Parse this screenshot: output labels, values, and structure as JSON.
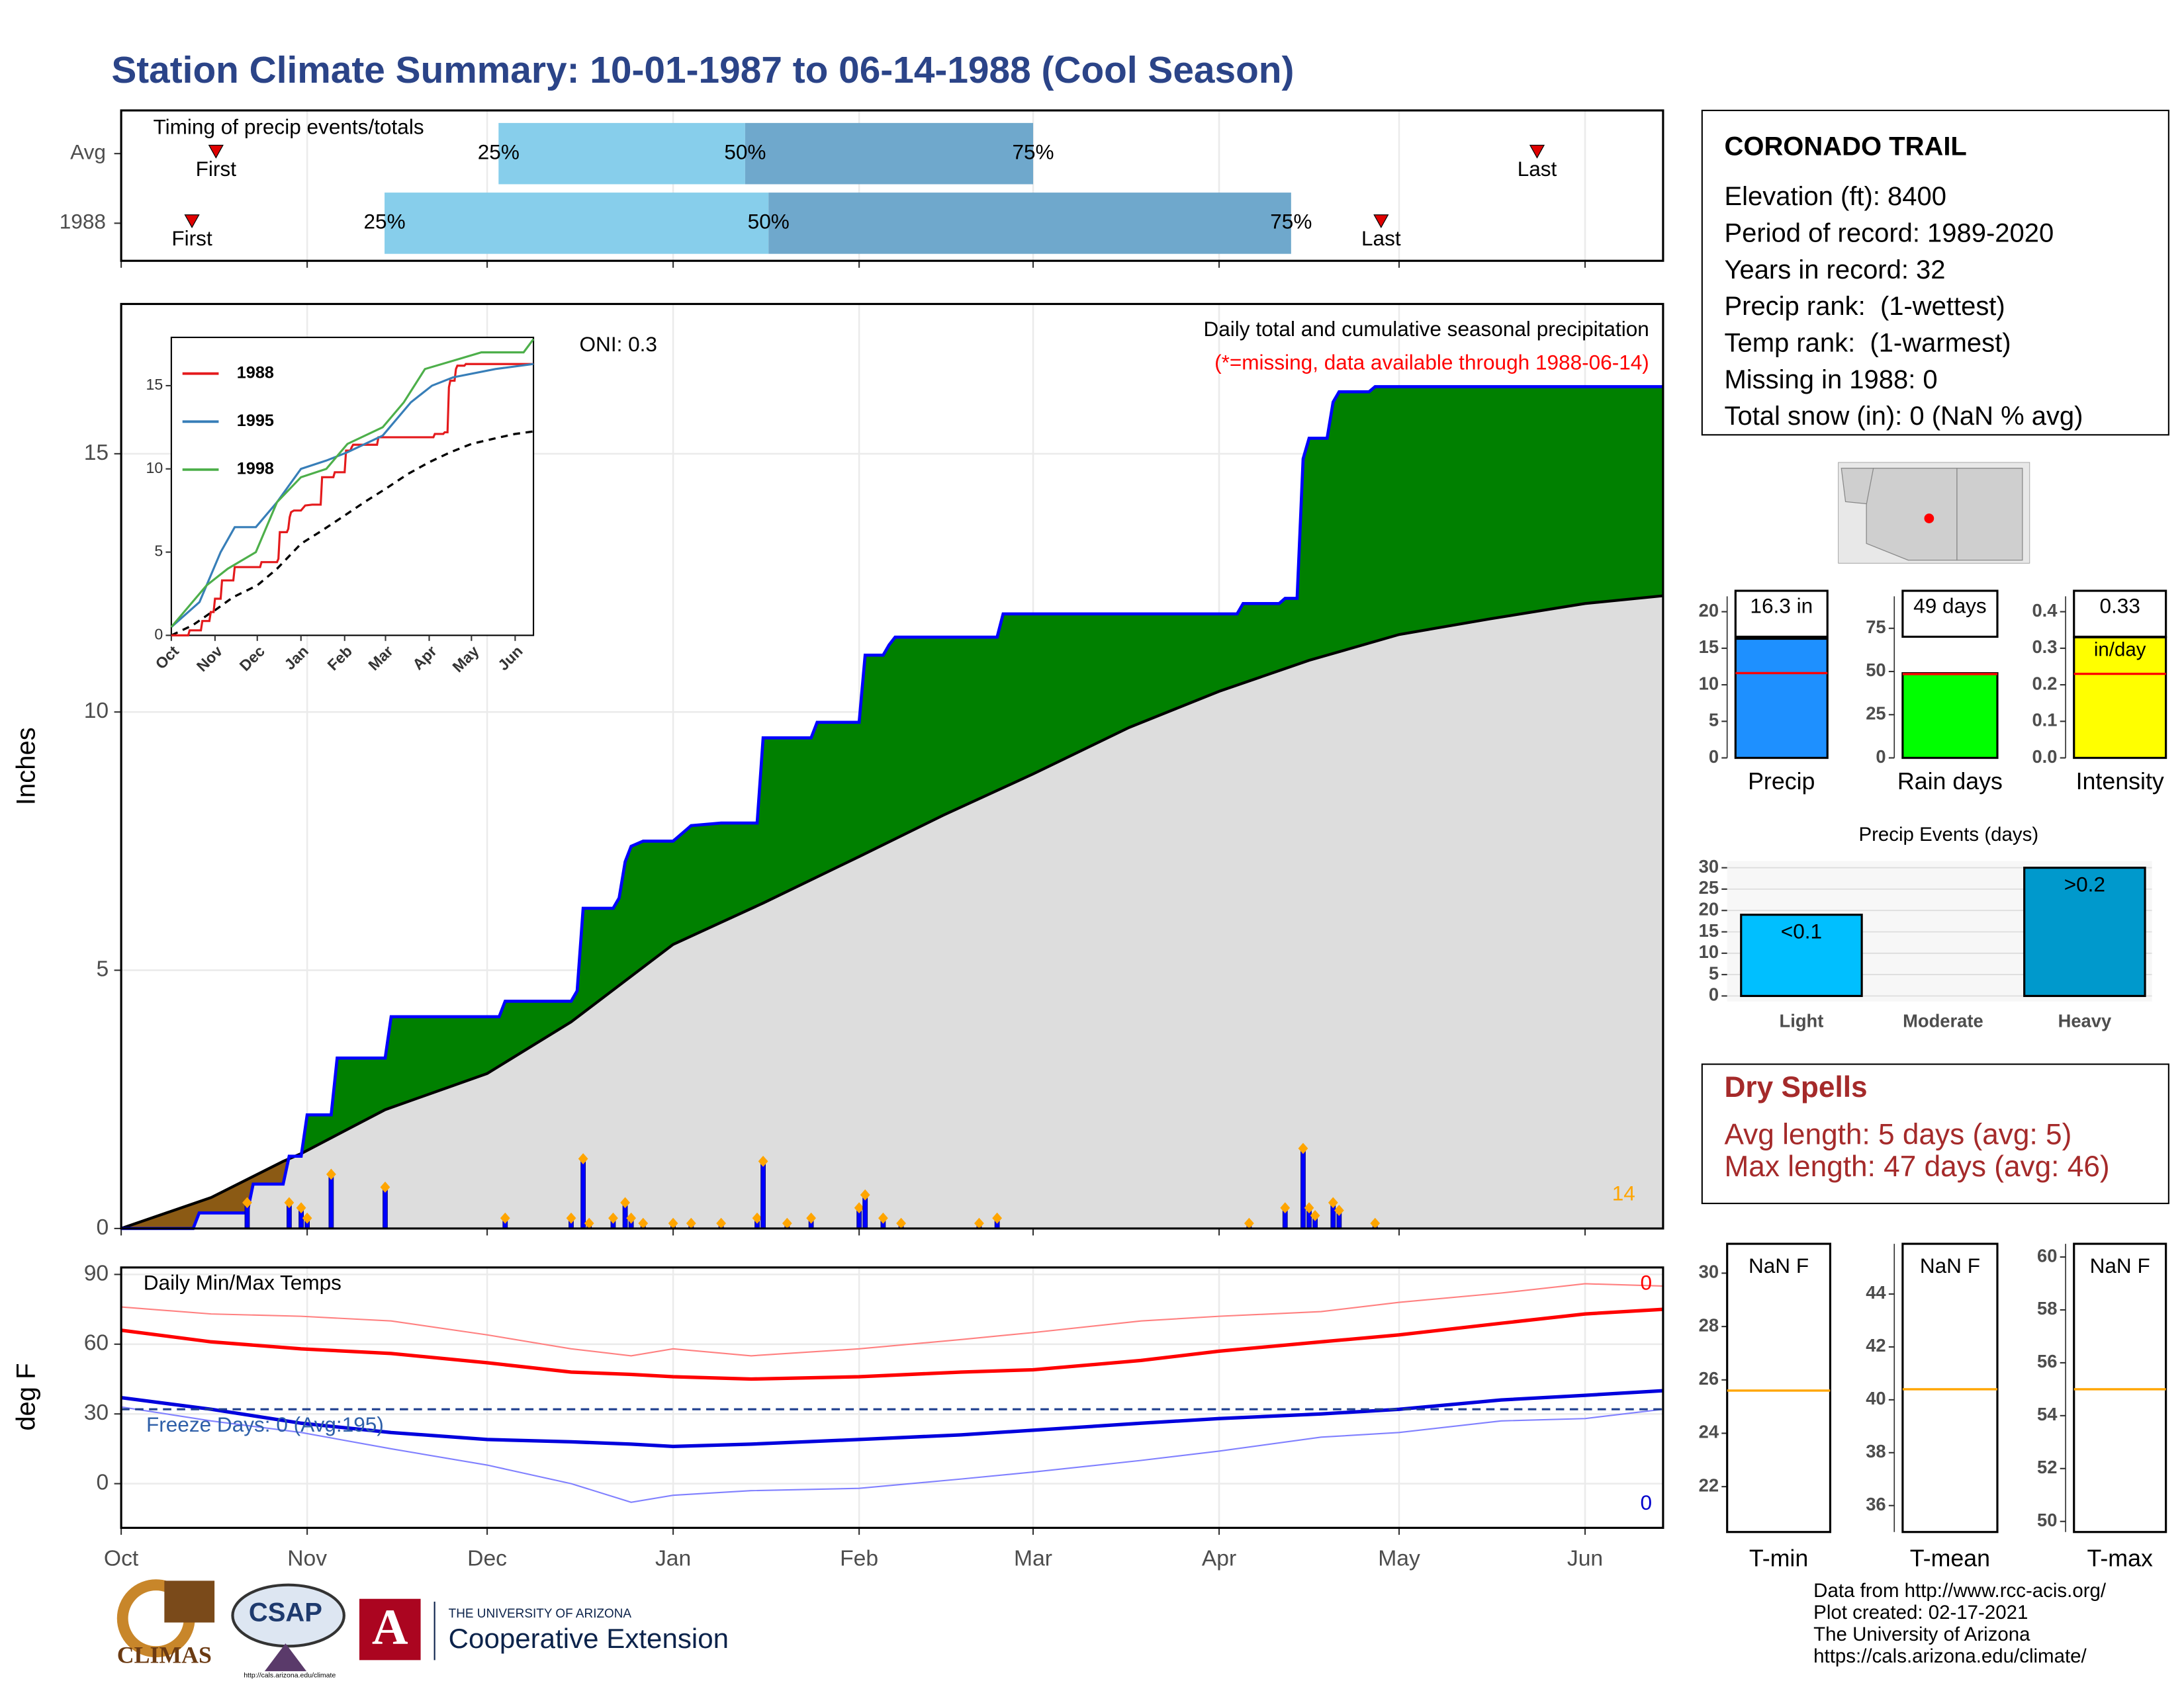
{
  "title": "Station Climate Summary: 10-01-1987 to 06-14-1988 (Cool Season)",
  "chart_data": [
    {
      "type": "timing",
      "title": "Timing of precip events/totals",
      "labels": [
        "First",
        "25%",
        "50%",
        "75%",
        "Last"
      ],
      "colors": [
        "#87ceeb",
        "#6fa8cc"
      ],
      "marker_color": "#e00000",
      "rows": [
        {
          "name": "Avg",
          "values": [
            15.8,
            62.9,
            104,
            152,
            236
          ]
        },
        {
          "name": "1988",
          "values": [
            11.8,
            43.9,
            107.9,
            195,
            210
          ]
        }
      ]
    },
    {
      "type": "cumulative",
      "y_label": "Inches",
      "annotation": "Daily total and cumulative seasonal precipitation",
      "missing_note": "(*=missing, data available through 1988-06-14)",
      "oni": "ONI: 0.3",
      "count_label": "14",
      "ylim": [
        0,
        17.9
      ],
      "yticks": [
        0,
        5,
        10,
        15
      ],
      "grid": true,
      "above_color": "#008000",
      "below_color": "#8b5a14",
      "normal_color": "#dddddd",
      "line_color": "#0000ff",
      "daily_color": "#0000ff",
      "marker_color": "#ffa500",
      "cumulative": {
        "x": [
          0,
          12,
          13,
          21,
          22,
          27,
          28,
          30,
          31,
          35,
          36,
          44,
          45,
          63,
          64,
          75,
          76,
          77,
          82,
          83,
          84,
          85,
          87,
          92,
          93,
          95,
          100,
          106,
          107,
          115,
          116,
          123,
          124,
          127,
          128,
          129,
          146,
          147,
          186,
          187,
          193,
          194,
          196,
          197,
          198,
          201,
          202,
          203,
          208,
          209,
          257
        ],
        "values": [
          0,
          0,
          0.3,
          0.3,
          0.86,
          0.86,
          1.4,
          1.4,
          2.2,
          2.2,
          3.3,
          3.3,
          4.1,
          4.1,
          4.4,
          4.4,
          4.6,
          6.2,
          6.2,
          6.4,
          7.1,
          7.4,
          7.5,
          7.5,
          7.6,
          7.8,
          7.85,
          7.85,
          9.5,
          9.5,
          9.8,
          9.8,
          11.1,
          11.1,
          11.3,
          11.45,
          11.45,
          11.9,
          11.9,
          12.1,
          12.1,
          12.2,
          12.2,
          14.9,
          15.3,
          15.3,
          16.0,
          16.2,
          16.2,
          16.3,
          16.3
        ]
      },
      "normal": {
        "x": [
          0,
          15,
          27,
          30,
          44,
          61,
          75,
          92,
          107,
          123,
          137,
          152,
          168,
          183,
          198,
          213,
          228,
          244,
          257
        ],
        "values": [
          0,
          0.6,
          1.3,
          1.45,
          2.3,
          3.0,
          4.0,
          5.5,
          6.3,
          7.2,
          8.0,
          8.8,
          9.7,
          10.4,
          11.0,
          11.5,
          11.8,
          12.1,
          12.25
        ]
      },
      "daily": {
        "x": [
          21,
          28,
          30,
          31,
          35,
          44,
          64,
          75,
          77,
          78,
          82,
          84,
          85,
          87,
          92,
          95,
          100,
          106,
          107,
          111,
          115,
          123,
          124,
          127,
          130,
          143,
          146,
          188,
          194,
          197,
          198,
          199,
          202,
          203,
          209
        ],
        "values": [
          0.5,
          0.5,
          0.4,
          0.2,
          1.05,
          0.8,
          0.2,
          0.2,
          1.35,
          0.1,
          0.2,
          0.5,
          0.2,
          0.1,
          0.1,
          0.1,
          0.1,
          0.2,
          1.3,
          0.1,
          0.2,
          0.4,
          0.65,
          0.2,
          0.1,
          0.1,
          0.2,
          0.1,
          0.4,
          1.55,
          0.4,
          0.25,
          0.5,
          0.35,
          0.1
        ]
      }
    },
    {
      "type": "inset-lines",
      "xlim": [
        0,
        257
      ],
      "ylim": [
        0,
        17.9
      ],
      "xticks": [
        {
          "value": 0,
          "label": "Oct"
        },
        {
          "value": 31,
          "label": "Nov"
        },
        {
          "value": 61,
          "label": "Dec"
        },
        {
          "value": 92,
          "label": "Jan"
        },
        {
          "value": 123,
          "label": "Feb"
        },
        {
          "value": 152,
          "label": "Mar"
        },
        {
          "value": 183,
          "label": "Apr"
        },
        {
          "value": 213,
          "label": "May"
        },
        {
          "value": 244,
          "label": "Jun"
        }
      ],
      "yticks": [
        0,
        5,
        10,
        15
      ],
      "series": [
        {
          "name": "1988",
          "color": "#e41a1c"
        },
        {
          "name": "1995",
          "color": "#377eb8",
          "x": [
            0,
            20,
            35,
            45,
            60,
            75,
            92,
            110,
            125,
            150,
            170,
            185,
            200,
            230,
            257
          ],
          "values": [
            0.5,
            2,
            5,
            6.5,
            6.5,
            8,
            10,
            10.5,
            11,
            12,
            14,
            15,
            15.5,
            16,
            16.3
          ]
        },
        {
          "name": "1998",
          "color": "#4daf4a",
          "x": [
            0,
            25,
            40,
            60,
            75,
            92,
            110,
            125,
            150,
            165,
            180,
            200,
            220,
            250,
            257
          ],
          "values": [
            0.5,
            3,
            4,
            5,
            8,
            9.5,
            10,
            11.5,
            12.5,
            14,
            16,
            16.5,
            17,
            17,
            17.8
          ]
        }
      ]
    },
    {
      "type": "temps",
      "title": "Daily Min/Max Temps",
      "y_label": "deg F",
      "freeze_label": "Freeze Days: 0 (Avg:195)",
      "freeze": 32,
      "freeze_color": "#1f3f8f",
      "corner_labels": [
        {
          "text": "0",
          "color": "#ff0000"
        },
        {
          "text": "0",
          "color": "#0000cc"
        }
      ],
      "xlim": [
        0,
        257
      ],
      "xticks": [
        {
          "value": 0,
          "label": "Oct"
        },
        {
          "value": 31,
          "label": "Nov"
        },
        {
          "value": 61,
          "label": "Dec"
        },
        {
          "value": 92,
          "label": "Jan"
        },
        {
          "value": 123,
          "label": "Feb"
        },
        {
          "value": 152,
          "label": "Mar"
        },
        {
          "value": 183,
          "label": "Apr"
        },
        {
          "value": 213,
          "label": "May"
        },
        {
          "value": 244,
          "label": "Jun"
        }
      ],
      "ylim": [
        -19,
        93
      ],
      "yticks": [
        0,
        30,
        60,
        90
      ],
      "grid": true,
      "x": [
        0,
        15,
        30,
        45,
        61,
        75,
        85,
        92,
        105,
        123,
        140,
        152,
        170,
        183,
        200,
        213,
        230,
        244,
        257
      ],
      "series": [
        {
          "color": "#ff8080",
          "width": 1,
          "values": [
            76,
            73,
            72,
            70,
            64,
            58,
            55,
            58,
            55,
            58,
            62,
            65,
            70,
            72,
            74,
            78,
            82,
            86,
            85
          ]
        },
        {
          "color": "#ff0000",
          "width": 2.5,
          "values": [
            66,
            61,
            58,
            56,
            52,
            48,
            47,
            46,
            45,
            46,
            48,
            49,
            53,
            57,
            61,
            64,
            69,
            73,
            75
          ]
        },
        {
          "color": "#0000dd",
          "width": 2.5,
          "values": [
            37,
            32,
            26,
            22,
            19,
            18,
            17,
            16,
            17,
            19,
            21,
            23,
            26,
            28,
            30,
            32,
            36,
            38,
            40
          ]
        },
        {
          "color": "#8080ff",
          "width": 1,
          "values": [
            33,
            27,
            22,
            15,
            8,
            0,
            -8,
            -5,
            -3,
            -2,
            2,
            5,
            10,
            14,
            20,
            22,
            27,
            28,
            32
          ]
        }
      ]
    },
    {
      "type": "bar",
      "categories": [
        "Precip"
      ],
      "values": [
        16.3
      ],
      "value_labels": [
        "16.3 in"
      ],
      "color": "#1e90ff",
      "normal": 11.6,
      "normal_color": "#ff0000",
      "ylim": [
        0,
        22.1
      ],
      "yticks": [
        0,
        5,
        10,
        15,
        20
      ]
    },
    {
      "type": "bar",
      "categories": [
        "Rain days"
      ],
      "values": [
        49
      ],
      "value_labels": [
        "49 days"
      ],
      "color": "#00ff00",
      "normal": 48.5,
      "normal_color": "#ff0000",
      "ylim": [
        0,
        93.5
      ],
      "yticks": [
        0,
        25,
        50,
        75
      ]
    },
    {
      "type": "bar",
      "categories": [
        "Intensity"
      ],
      "values": [
        0.33
      ],
      "value_labels": [
        "0.33"
      ],
      "unit_label": "in/day",
      "color": "#ffff00",
      "normal": 0.23,
      "normal_color": "#ff0000",
      "ylim": [
        0,
        0.442
      ],
      "yticks": [
        {
          "value": 0,
          "label": "0.0"
        },
        0.1,
        0.2,
        0.3,
        0.4
      ]
    },
    {
      "type": "events",
      "title": "Precip Events (days)",
      "categories": [
        "Light",
        "Moderate",
        "Heavy"
      ],
      "values": [
        19,
        0,
        30
      ],
      "thresholds": [
        "<0.1",
        null,
        ">0.2"
      ],
      "colors": [
        "#00bfff",
        "#888888",
        "#0099cc"
      ],
      "ylim": [
        0,
        31.6
      ],
      "yticks": [
        0,
        5,
        10,
        15,
        20,
        25,
        30
      ],
      "grid": true
    },
    {
      "type": "bar",
      "categories": [
        "T-min"
      ],
      "values": [
        null
      ],
      "value_labels": [
        "NaN F"
      ],
      "normal": 25.6,
      "normal_color": "#ffa500",
      "ylim": [
        20.3,
        31.1
      ],
      "yticks": [
        22,
        24,
        26,
        28,
        30
      ]
    },
    {
      "type": "bar",
      "categories": [
        "T-mean"
      ],
      "values": [
        null
      ],
      "value_labels": [
        "NaN F"
      ],
      "normal": 40.4,
      "normal_color": "#ffa500",
      "ylim": [
        35.0,
        45.9
      ],
      "yticks": [
        36,
        38,
        40,
        42,
        44
      ]
    },
    {
      "type": "bar",
      "categories": [
        "T-max"
      ],
      "values": [
        null
      ],
      "value_labels": [
        "NaN F"
      ],
      "normal": 55,
      "normal_color": "#ffa500",
      "ylim": [
        49.6,
        60.5
      ],
      "yticks": [
        50,
        52,
        54,
        56,
        58,
        60
      ]
    }
  ],
  "station": {
    "name": "CORONADO TRAIL",
    "lines": [
      "Elevation (ft): 8400",
      "Period of record: 1989-2020",
      "Years in record: 32",
      "Precip rank:  (1-wettest)",
      "Temp rank:  (1-warmest)",
      "Missing in 1988: 0",
      "Total snow (in): 0 (NaN % avg)"
    ]
  },
  "dry_spells": {
    "title": "Dry Spells",
    "lines": [
      "Avg length: 5 days (avg: 5)",
      "Max length: 47 days (avg: 46)"
    ]
  },
  "footer": {
    "climas": "CLIMAS",
    "csap": "CSAP",
    "csap_url": "http://cals.arizona.edu/climate",
    "ua_letter": "A",
    "ua_small": "THE UNIVERSITY OF ARIZONA",
    "ua_big": "Cooperative Extension",
    "credits": [
      "Data from http://www.rcc-acis.org/",
      "Plot created: 02-17-2021",
      "The University of Arizona",
      "https://cals.arizona.edu/climate/"
    ]
  }
}
